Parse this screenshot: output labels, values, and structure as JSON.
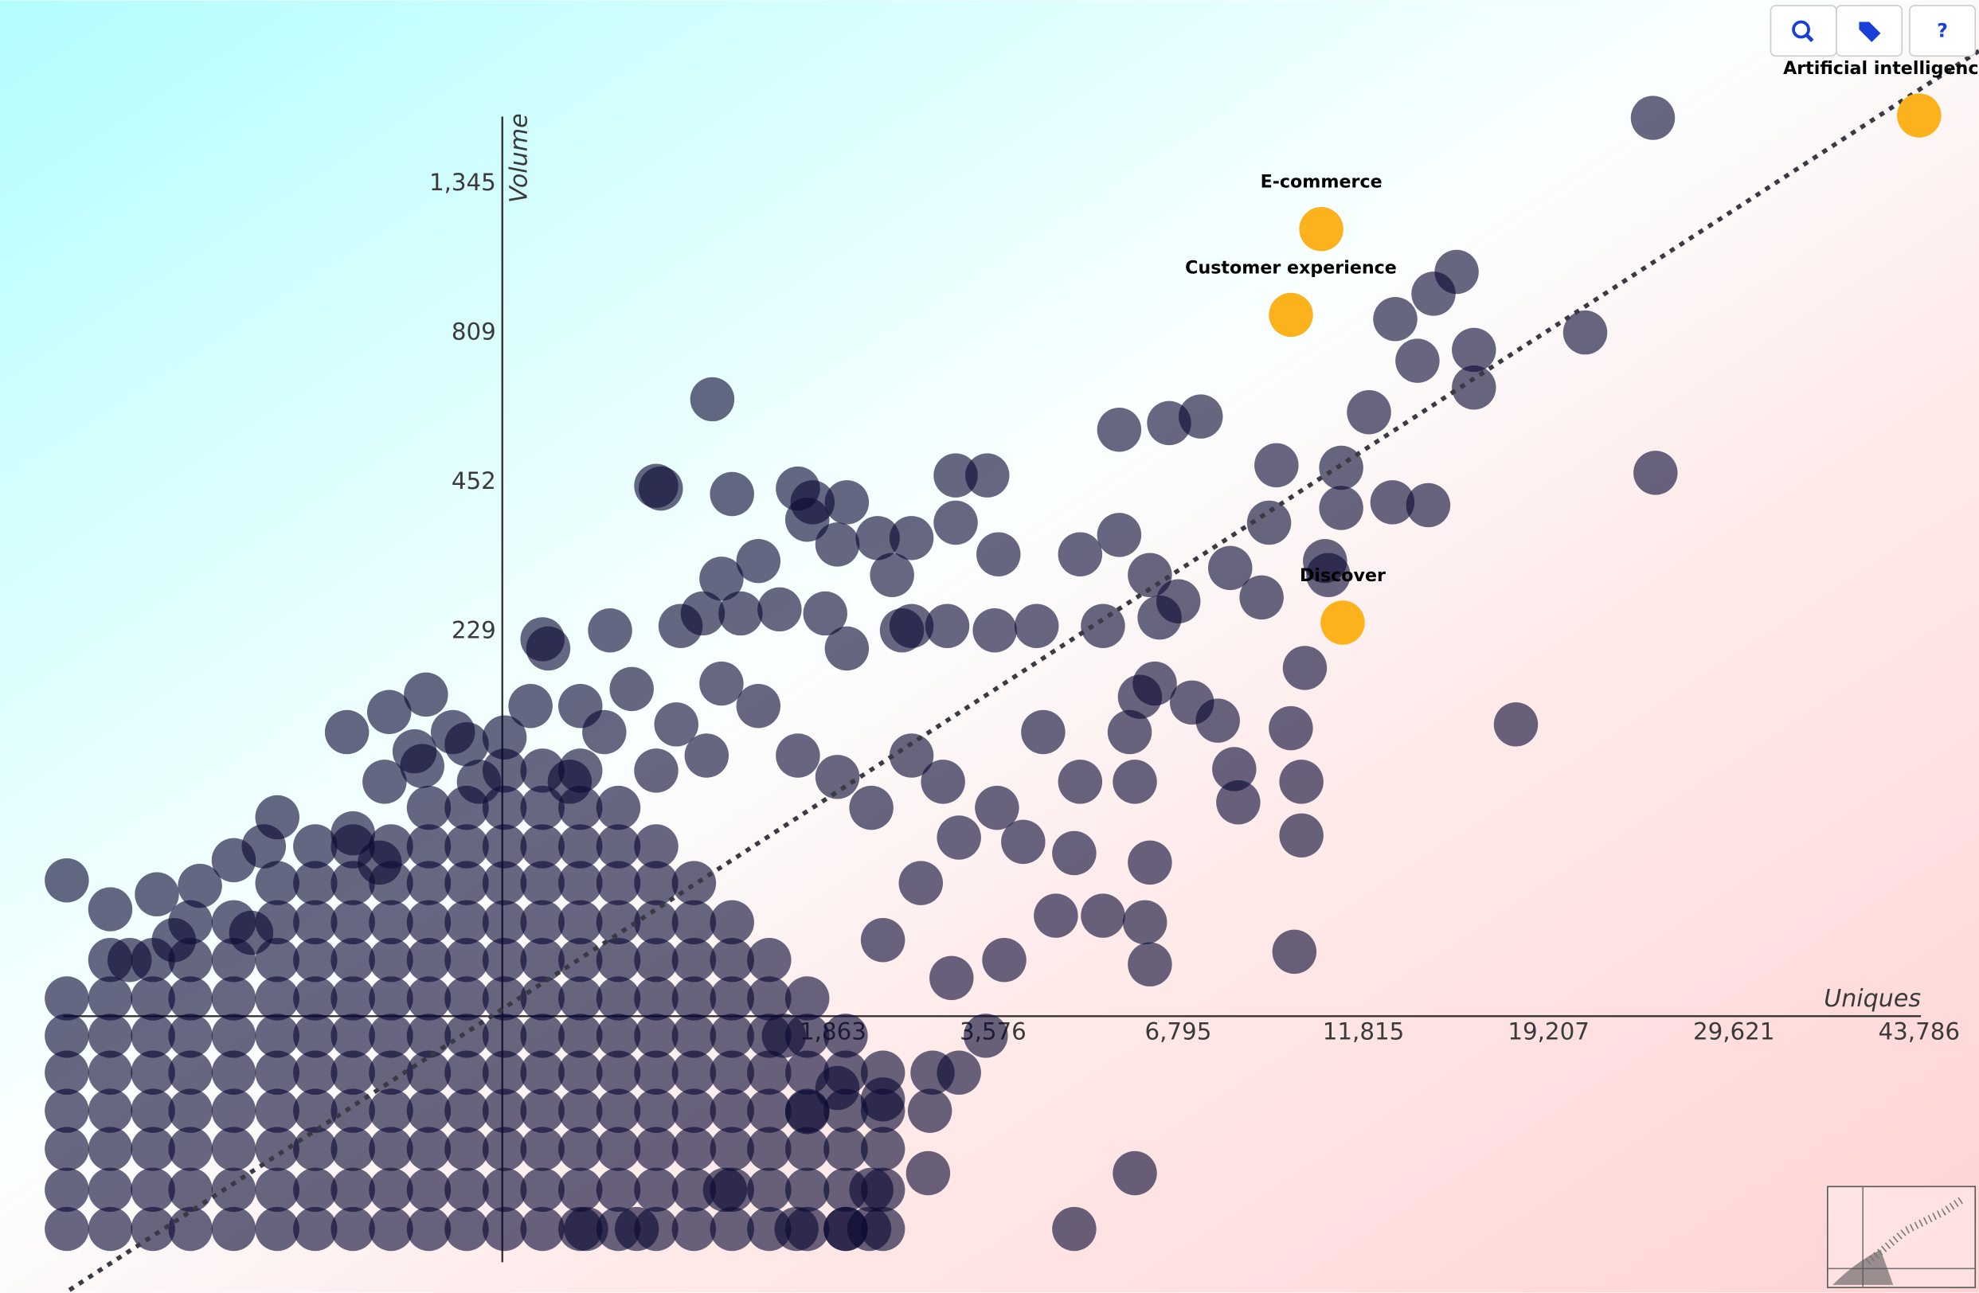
{
  "chart_data": {
    "type": "scatter",
    "x_label": "Uniques",
    "y_label": "Volume",
    "xscale": "pow",
    "yscale": "pow",
    "scale_exponent": 0.25,
    "xlim": [
      0.07,
      49300
    ],
    "ylim": [
      0.23,
      2320
    ],
    "xticks": [
      {
        "value": 1863,
        "label": "1,863"
      },
      {
        "value": 3576,
        "label": "3,576"
      },
      {
        "value": 6795,
        "label": "6,795"
      },
      {
        "value": 11815,
        "label": "11,815"
      },
      {
        "value": 19207,
        "label": "19,207"
      },
      {
        "value": 29621,
        "label": "29,621"
      },
      {
        "value": 43786,
        "label": "43,786"
      }
    ],
    "yticks": [
      229,
      452,
      809,
      {
        "value": 1345,
        "label": "1,345"
      }
    ],
    "series": [
      {
        "color": "#0b0933",
        "opacity": 0.62,
        "x": [
          1,
          1,
          1,
          1,
          1,
          1,
          1,
          3,
          3,
          3,
          3,
          3,
          3,
          3,
          3,
          7,
          7,
          7,
          7,
          7,
          7,
          7,
          7,
          13,
          13,
          13,
          13,
          13,
          13,
          13,
          13,
          13,
          24,
          24,
          24,
          24,
          24,
          24,
          24,
          24,
          24,
          41,
          41,
          41,
          41,
          41,
          41,
          41,
          41,
          41,
          41,
          62,
          62,
          62,
          62,
          62,
          62,
          62,
          62,
          62,
          62,
          90,
          90,
          90,
          90,
          90,
          90,
          90,
          90,
          90,
          90,
          90,
          127,
          127,
          127,
          127,
          127,
          127,
          127,
          127,
          127,
          127,
          127,
          174,
          174,
          174,
          174,
          174,
          174,
          174,
          174,
          174,
          174,
          174,
          174,
          233,
          233,
          233,
          233,
          233,
          233,
          233,
          233,
          233,
          233,
          233,
          233,
          306,
          306,
          306,
          306,
          306,
          306,
          306,
          306,
          306,
          306,
          306,
          306,
          306,
          395,
          395,
          395,
          395,
          395,
          395,
          395,
          395,
          395,
          395,
          395,
          395,
          395,
          502,
          502,
          502,
          502,
          502,
          502,
          502,
          502,
          502,
          502,
          502,
          502,
          502,
          630,
          630,
          630,
          630,
          630,
          630,
          630,
          630,
          630,
          630,
          630,
          630,
          780,
          780,
          780,
          780,
          780,
          780,
          780,
          780,
          780,
          780,
          780,
          955,
          955,
          955,
          955,
          955,
          955,
          955,
          955,
          955,
          955,
          1160,
          1160,
          1160,
          1160,
          1160,
          1160,
          1160,
          1160,
          1160,
          1390,
          1390,
          1390,
          1390,
          1390,
          1390,
          1390,
          1390,
          1660,
          1660,
          1660,
          1660,
          1660,
          1660,
          1660,
          1970,
          1970,
          1970,
          1970,
          1970,
          1970,
          2310,
          2310,
          2310,
          2310,
          2310,
          24650,
          24800,
          17700,
          21000,
          15900,
          15900,
          15200,
          14300,
          12900,
          13700,
          12000,
          11100,
          11100,
          12800,
          14100,
          9200,
          9000,
          10600,
          10700,
          10000,
          9600,
          9900,
          9900,
          9700,
          5600,
          6600,
          7300,
          8000,
          8800,
          5600,
          6200,
          6800,
          5300,
          6400,
          6300,
          6000,
          7100,
          7700,
          8100,
          8200,
          5800,
          5900,
          6200,
          6100,
          6200,
          4500,
          5300,
          4800,
          5900,
          4800,
          4900,
          4300,
          4900,
          3100,
          3500,
          3100,
          3650,
          3600,
          4200,
          3000,
          2600,
          1050,
          780,
          800,
          1160,
          1590,
          1700,
          1980,
          1660,
          1900,
          2260,
          2600,
          1320,
          1100,
          1000,
          890,
          1210,
          1460,
          1800,
          1980,
          2400,
          2500,
          600,
          395,
          410,
          170,
          125,
          85,
          120,
          165,
          155,
          233,
          41,
          24,
          35,
          62,
          90,
          115,
          1,
          3,
          7.5,
          15,
          4.5,
          10,
          30,
          1120,
          1580,
          1970,
          2180,
          2200,
          2780,
          2800,
          2830,
          3140,
          3480,
          3730,
          3050,
          2310,
          2700,
          3140,
          3630,
          4000,
          1660,
          1900,
          1490,
          2310,
          700,
          520,
          502,
          680,
          870,
          1100,
          1320,
          1590,
          1900,
          2200,
          2600,
          2950,
          780,
          1020,
          580,
          365,
          306,
          470,
          255,
          210
        ],
        "values": [
          1,
          2,
          3.7,
          6.1,
          9.5,
          14,
          20,
          1,
          2,
          3.7,
          6.1,
          9.5,
          14,
          20,
          28,
          1,
          2,
          3.7,
          6.1,
          9.5,
          14,
          20,
          28,
          1,
          2,
          3.7,
          6.1,
          9.5,
          14,
          20,
          28,
          38,
          1,
          2,
          3.7,
          6.1,
          9.5,
          14,
          20,
          28,
          38,
          1,
          2,
          3.7,
          6.1,
          9.5,
          14,
          20,
          28,
          38,
          51,
          1,
          2,
          3.7,
          6.1,
          9.5,
          14,
          20,
          28,
          38,
          51,
          1,
          2,
          3.7,
          6.1,
          9.5,
          14,
          20,
          28,
          38,
          51,
          66,
          1,
          2,
          3.7,
          6.1,
          9.5,
          14,
          20,
          28,
          38,
          51,
          66,
          1,
          2,
          3.7,
          6.1,
          9.5,
          14,
          20,
          28,
          38,
          51,
          66,
          85,
          1,
          2,
          3.7,
          6.1,
          9.5,
          14,
          20,
          28,
          38,
          51,
          66,
          85,
          1,
          2,
          3.7,
          6.1,
          9.5,
          14,
          20,
          28,
          38,
          51,
          66,
          85,
          107,
          1,
          2,
          3.7,
          6.1,
          9.5,
          14,
          20,
          28,
          38,
          51,
          66,
          85,
          107,
          1,
          2,
          3.7,
          6.1,
          9.5,
          14,
          20,
          28,
          38,
          51,
          66,
          85,
          107,
          1,
          2,
          3.7,
          6.1,
          9.5,
          14,
          20,
          28,
          38,
          51,
          66,
          85,
          1,
          2,
          3.7,
          6.1,
          9.5,
          14,
          20,
          28,
          38,
          51,
          66,
          1,
          2,
          3.7,
          6.1,
          9.5,
          14,
          20,
          28,
          38,
          51,
          1,
          2,
          3.7,
          6.1,
          9.5,
          14,
          20,
          28,
          38,
          1,
          2,
          3.7,
          6.1,
          9.5,
          14,
          20,
          28,
          1,
          2,
          3.7,
          6.1,
          9.5,
          14,
          20,
          1,
          2,
          3.7,
          6.1,
          9.5,
          14,
          1,
          2,
          3.7,
          6.1,
          9.5,
          1649,
          470,
          140,
          810,
          760,
          660,
          1003,
          930,
          850,
          730,
          600,
          480,
          405,
          415,
          410,
          485,
          380,
          320,
          300,
          190,
          137,
          100,
          71,
          30,
          560,
          575,
          590,
          310,
          270,
          360,
          300,
          265,
          235,
          245,
          175,
          163,
          158,
          143,
          108,
          88,
          134,
          100,
          59,
          38,
          27,
          40,
          40,
          63,
          2.6,
          1,
          330,
          134,
          100,
          465,
          465,
          380,
          330,
          230,
          235,
          235,
          235,
          631,
          445,
          440,
          430,
          440,
          415,
          415,
          385,
          345,
          355,
          355,
          320,
          295,
          250,
          235,
          250,
          255,
          250,
          210,
          300,
          230,
          230,
          220,
          210,
          165,
          150,
          134,
          100,
          110,
          120,
          125,
          80,
          60,
          66,
          66,
          72,
          59,
          52,
          42,
          47,
          50,
          28,
          33,
          35,
          2,
          1,
          1,
          1,
          2,
          2.6,
          6.1,
          9.5,
          9.5,
          14,
          28,
          24,
          33,
          51,
          70,
          85,
          68,
          6,
          8,
          14,
          7,
          1,
          1,
          155,
          170,
          140,
          175,
          155,
          117,
          103,
          85,
          117,
          100,
          107,
          117,
          134,
          155,
          130,
          100,
          100,
          134
        ]
      },
      {
        "color": "#fbb21c",
        "opacity": 1,
        "labels": [
          "Artificial intelligence",
          "E-commerce",
          "Customer experience",
          "Discover"
        ],
        "x": [
          43786,
          10487,
          9602,
          11146
        ],
        "values": [
          1661,
          1159,
          863,
          239
        ]
      }
    ],
    "toolbar": {
      "help": "?"
    }
  }
}
